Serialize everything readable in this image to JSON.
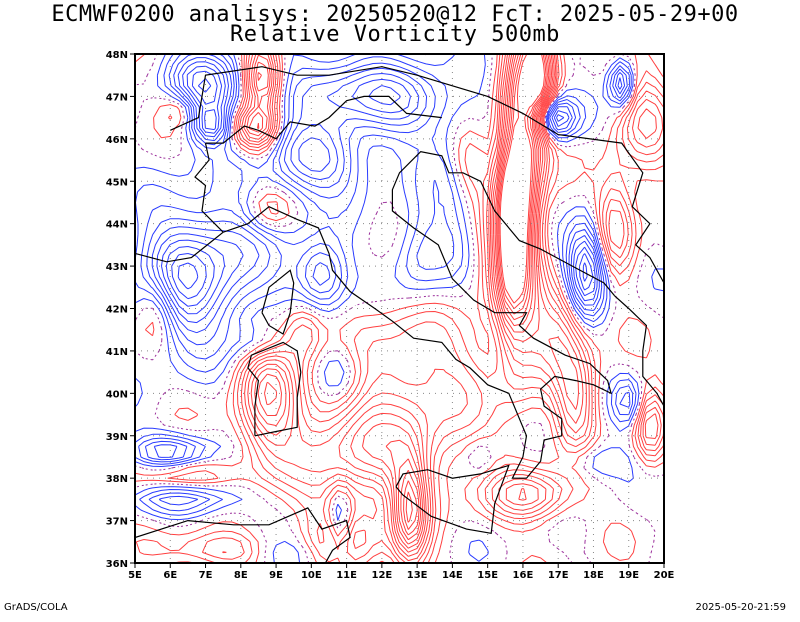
{
  "title_line1": "ECMWF0200 analisys: 20250520@12 FcT: 2025-05-29+00",
  "title_line2": "Relative Vorticity 500mb",
  "footer_left": "GrADS/COLA",
  "footer_right": "2025-05-20-21:59",
  "map": {
    "lon_min": 5,
    "lon_max": 20,
    "lat_min": 36,
    "lat_max": 48,
    "lon_ticks": [
      "5E",
      "6E",
      "7E",
      "8E",
      "9E",
      "10E",
      "11E",
      "12E",
      "13E",
      "14E",
      "15E",
      "16E",
      "17E",
      "18E",
      "19E",
      "20E"
    ],
    "lat_ticks": [
      "36N",
      "37N",
      "38N",
      "39N",
      "40N",
      "41N",
      "42N",
      "43N",
      "44N",
      "45N",
      "46N",
      "47N",
      "48N"
    ],
    "gridlines": true,
    "contour_colors": {
      "positive": "#ff4040",
      "negative": "#2a3cff",
      "zero": "#9b2f9b",
      "coast": "#000000"
    }
  }
}
